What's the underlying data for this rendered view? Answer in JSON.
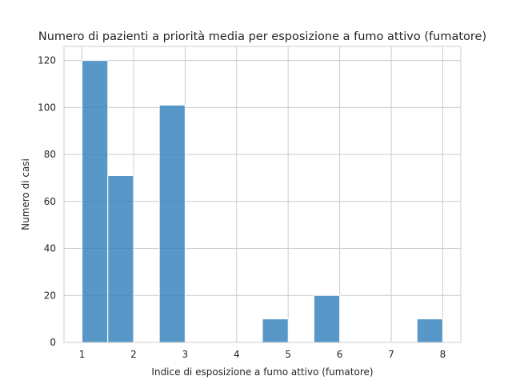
{
  "chart_data": {
    "type": "bar",
    "title": "Numero di pazienti a priorità media per esposizione a fumo attivo (fumatore)",
    "xlabel": "Indice di esposizione a fumo attivo (fumatore)",
    "ylabel": "Numero di casi",
    "xlim": [
      0.65,
      8.35
    ],
    "ylim": [
      0,
      126
    ],
    "xticks": [
      1,
      2,
      3,
      4,
      5,
      6,
      7,
      8
    ],
    "yticks": [
      0,
      20,
      40,
      60,
      80,
      100,
      120
    ],
    "grid": true,
    "bar_color": "#2e7ebc",
    "bins": [
      {
        "x0": 1.0,
        "x1": 1.5,
        "value": 120
      },
      {
        "x0": 1.5,
        "x1": 2.0,
        "value": 71
      },
      {
        "x0": 2.0,
        "x1": 2.5,
        "value": 0
      },
      {
        "x0": 2.5,
        "x1": 3.0,
        "value": 101
      },
      {
        "x0": 3.0,
        "x1": 3.5,
        "value": 0
      },
      {
        "x0": 3.5,
        "x1": 4.0,
        "value": 0
      },
      {
        "x0": 4.0,
        "x1": 4.5,
        "value": 0
      },
      {
        "x0": 4.5,
        "x1": 5.0,
        "value": 10
      },
      {
        "x0": 5.0,
        "x1": 5.5,
        "value": 0
      },
      {
        "x0": 5.5,
        "x1": 6.0,
        "value": 20
      },
      {
        "x0": 6.0,
        "x1": 6.5,
        "value": 0
      },
      {
        "x0": 6.5,
        "x1": 7.0,
        "value": 0
      },
      {
        "x0": 7.0,
        "x1": 7.5,
        "value": 0
      },
      {
        "x0": 7.5,
        "x1": 8.0,
        "value": 10
      }
    ]
  }
}
